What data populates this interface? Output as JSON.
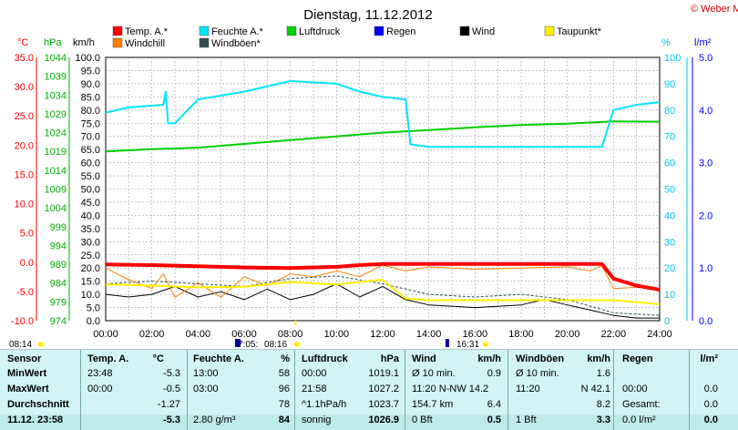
{
  "header": {
    "title": "Dienstag, 11.12.2012",
    "copyright": "© Weber Mike"
  },
  "legend": [
    {
      "name": "Temp. A.*",
      "color": "#ff0000"
    },
    {
      "name": "Feuchte A.*",
      "color": "#00e5ff"
    },
    {
      "name": "Luftdruck",
      "color": "#00d000"
    },
    {
      "name": "Regen",
      "color": "#0000ff"
    },
    {
      "name": "Wind",
      "color": "#000000"
    },
    {
      "name": "Taupunkt*",
      "color": "#ffee00"
    },
    {
      "name": "Windchill",
      "color": "#ff8000"
    },
    {
      "name": "Windböen*",
      "color": "#2f4f4f"
    }
  ],
  "axes": {
    "temp_unit": "°C",
    "pressure_unit": "hPa",
    "wind_unit": "km/h",
    "humidity_unit": "%",
    "rain_unit": "l/m²",
    "temp_ticks": [
      "35.0",
      "30.0",
      "25.0",
      "20.0",
      "15.0",
      "10.0",
      "5.0",
      "0.0",
      "-5.0",
      "-10.0"
    ],
    "pressure_ticks": [
      "1044",
      "1039",
      "1034",
      "1029",
      "1024",
      "1019",
      "1014",
      "1009",
      "1004",
      "999",
      "994",
      "989",
      "984",
      "979",
      "974"
    ],
    "wind_ticks": [
      "100.0",
      "95.0",
      "90.0",
      "85.0",
      "80.0",
      "75.0",
      "70.0",
      "65.0",
      "60.0",
      "55.0",
      "50.0",
      "45.0",
      "40.0",
      "35.0",
      "30.0",
      "25.0",
      "20.0",
      "15.0",
      "10.0",
      "5.0",
      "0.0"
    ],
    "humidity_ticks": [
      "100",
      "90",
      "80",
      "70",
      "60",
      "50",
      "40",
      "30",
      "20",
      "10",
      "0"
    ],
    "rain_ticks": [
      "5.0",
      "4.0",
      "3.0",
      "2.0",
      "1.0",
      "0.0"
    ],
    "x_ticks": [
      "00:00",
      "02:00",
      "04:00",
      "06:00",
      "08:00",
      "10:00",
      "12:00",
      "14:00",
      "16:00",
      "18:00",
      "20:00",
      "22:00",
      "24:00"
    ]
  },
  "sun": {
    "sunrise": "08:14",
    "dawn_left": "7:05:",
    "dawn_right": "08:16",
    "sunset": "16:31"
  },
  "chart_data": {
    "type": "line",
    "x_unit": "hour",
    "xlim": [
      0,
      24
    ],
    "series": [
      {
        "name": "Temp. A.*",
        "axis": "temp",
        "ylim": [
          -10,
          35
        ],
        "points": [
          [
            0,
            -0.4
          ],
          [
            2,
            -0.5
          ],
          [
            4,
            -0.7
          ],
          [
            6,
            -0.9
          ],
          [
            8,
            -1.0
          ],
          [
            10,
            -0.8
          ],
          [
            11,
            -0.5
          ],
          [
            12,
            -0.3
          ],
          [
            14,
            -0.3
          ],
          [
            18,
            -0.3
          ],
          [
            21.5,
            -0.3
          ],
          [
            22,
            -2.8
          ],
          [
            23,
            -4.0
          ],
          [
            24,
            -4.7
          ]
        ]
      },
      {
        "name": "Feuchte A.*",
        "axis": "humidity",
        "ylim": [
          0,
          100
        ],
        "points": [
          [
            0,
            79
          ],
          [
            1,
            81
          ],
          [
            2.5,
            82
          ],
          [
            2.6,
            87
          ],
          [
            2.7,
            75
          ],
          [
            3,
            75
          ],
          [
            4,
            84
          ],
          [
            6,
            87
          ],
          [
            8,
            91
          ],
          [
            10,
            90
          ],
          [
            11,
            87
          ],
          [
            12,
            85
          ],
          [
            13,
            84
          ],
          [
            13.2,
            67
          ],
          [
            14,
            66
          ],
          [
            20,
            66
          ],
          [
            21.5,
            66
          ],
          [
            22,
            80
          ],
          [
            23,
            82
          ],
          [
            24,
            83
          ]
        ]
      },
      {
        "name": "Luftdruck",
        "axis": "pressure",
        "ylim": [
          974,
          1044
        ],
        "points": [
          [
            0,
            1019
          ],
          [
            2,
            1019.6
          ],
          [
            4,
            1020
          ],
          [
            6,
            1021
          ],
          [
            8,
            1022
          ],
          [
            10,
            1023
          ],
          [
            12,
            1024
          ],
          [
            14,
            1024.7
          ],
          [
            16,
            1025.4
          ],
          [
            18,
            1026
          ],
          [
            20,
            1026.4
          ],
          [
            22,
            1027
          ],
          [
            24,
            1026.9
          ]
        ]
      },
      {
        "name": "Wind",
        "axis": "wind",
        "ylim": [
          0,
          100
        ],
        "points": [
          [
            0,
            10
          ],
          [
            1,
            9
          ],
          [
            2,
            10
          ],
          [
            3,
            13
          ],
          [
            4,
            9
          ],
          [
            5,
            11
          ],
          [
            6,
            8
          ],
          [
            7,
            12
          ],
          [
            8,
            8
          ],
          [
            9,
            10
          ],
          [
            10,
            14
          ],
          [
            11,
            9
          ],
          [
            12,
            13
          ],
          [
            13,
            8
          ],
          [
            14,
            6
          ],
          [
            16,
            5
          ],
          [
            18,
            6
          ],
          [
            19,
            8
          ],
          [
            20,
            6
          ],
          [
            21,
            4
          ],
          [
            22,
            2
          ],
          [
            23,
            1
          ],
          [
            24,
            1
          ]
        ]
      },
      {
        "name": "Windböen*",
        "axis": "wind",
        "ylim": [
          0,
          100
        ],
        "points": [
          [
            0,
            14
          ],
          [
            2,
            15
          ],
          [
            4,
            14
          ],
          [
            6,
            13
          ],
          [
            8,
            16
          ],
          [
            10,
            17
          ],
          [
            12,
            14
          ],
          [
            14,
            10
          ],
          [
            16,
            9
          ],
          [
            18,
            10
          ],
          [
            20,
            8
          ],
          [
            22,
            3
          ],
          [
            24,
            2
          ]
        ]
      },
      {
        "name": "Taupunkt*",
        "axis": "temp",
        "ylim": [
          -10,
          35
        ],
        "points": [
          [
            0,
            -3.8
          ],
          [
            2,
            -4.0
          ],
          [
            4,
            -4.3
          ],
          [
            6,
            -4.2
          ],
          [
            8,
            -3.4
          ],
          [
            10,
            -3.8
          ],
          [
            12,
            -3.0
          ],
          [
            13,
            -6.2
          ],
          [
            14,
            -6.5
          ],
          [
            20,
            -6.5
          ],
          [
            22,
            -6.5
          ],
          [
            24,
            -7.2
          ]
        ]
      },
      {
        "name": "Windchill",
        "axis": "temp",
        "ylim": [
          -10,
          35
        ],
        "points": [
          [
            0,
            -1.0
          ],
          [
            1,
            -3.0
          ],
          [
            2,
            -4.5
          ],
          [
            2.5,
            -2.0
          ],
          [
            3,
            -6.0
          ],
          [
            4,
            -3.5
          ],
          [
            5,
            -6.0
          ],
          [
            6,
            -2.5
          ],
          [
            7,
            -4.0
          ],
          [
            8,
            -2.0
          ],
          [
            9,
            -2.5
          ],
          [
            10,
            -1.5
          ],
          [
            11,
            -2.5
          ],
          [
            12,
            -0.5
          ],
          [
            13,
            -1.5
          ],
          [
            14,
            -0.8
          ],
          [
            16,
            -1.2
          ],
          [
            18,
            -1.0
          ],
          [
            20,
            -0.8
          ],
          [
            21,
            -1.5
          ],
          [
            21.5,
            -0.6
          ],
          [
            22,
            -4.5
          ],
          [
            23,
            -4.3
          ],
          [
            24,
            -4.6
          ]
        ]
      }
    ]
  },
  "table": {
    "headers": [
      "Sensor",
      "Temp. A.",
      "°C",
      "Feuchte A.",
      "%",
      "Luftdruck",
      "hPa",
      "Wind",
      "km/h",
      "Windböen",
      "km/h",
      "Regen",
      "l/m²"
    ],
    "rows": [
      {
        "label": "MinWert",
        "temp_time": "23:48",
        "temp": "-5.3",
        "hum_time": "13:00",
        "hum": "58",
        "press_time": "00:00",
        "press": "1019.1",
        "wind_label": "Ø 10 min.",
        "wind": "0.9",
        "gust_label": "Ø 10 min.",
        "gust": "1.6",
        "rain_label": "",
        "rain": ""
      },
      {
        "label": "MaxWert",
        "temp_time": "00:00",
        "temp": "-0.5",
        "hum_time": "03:00",
        "hum": "96",
        "press_time": "21:58",
        "press": "1027.2",
        "wind_label": "11:20   N-NW 14.2",
        "wind": "",
        "gust_label": "11:20",
        "gust": "N 42.1",
        "rain_label": "00:00",
        "rain": "0.0"
      },
      {
        "label": "Durchschnitt",
        "temp_time": "",
        "temp": "-1.27",
        "hum_time": "",
        "hum": "78",
        "press_time": "^1.1hPa/h",
        "press": "1023.7",
        "wind_label": "154.7 km",
        "wind": "6.4",
        "gust_label": "",
        "gust": "8.2",
        "rain_label": "Gesamt:",
        "rain": "0.0"
      },
      {
        "label": "11.12. 23:58",
        "temp_time": "",
        "temp": "-5.3",
        "hum_time": "2.80 g/m³",
        "hum": "84",
        "press_time": "sonnig",
        "press": "1026.9",
        "wind_label": "0 Bft",
        "wind": "0.5",
        "gust_label": "1 Bft",
        "gust": "3.3",
        "rain_label": "0.0 l/m²",
        "rain": "0.0"
      }
    ]
  }
}
